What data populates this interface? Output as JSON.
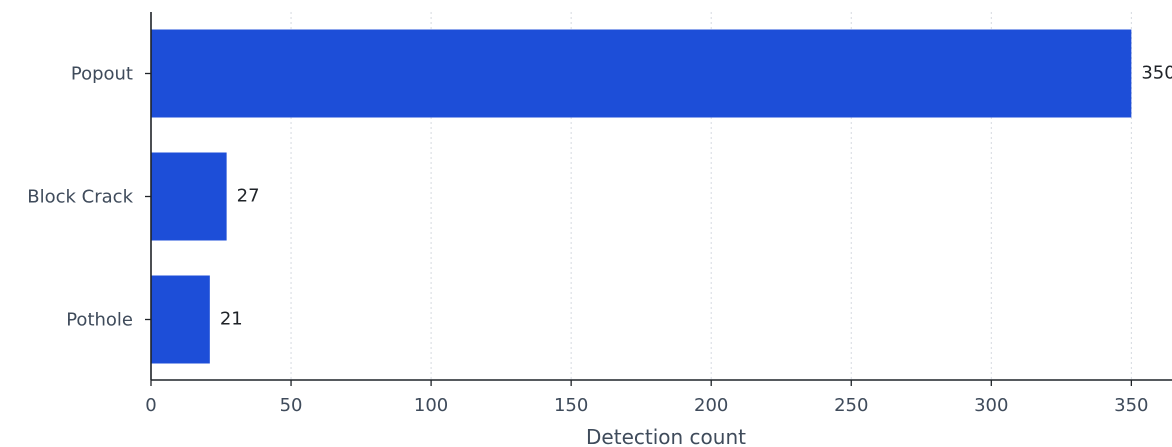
{
  "chart_data": {
    "type": "bar",
    "orientation": "horizontal",
    "categories": [
      "Popout",
      "Block Crack",
      "Pothole"
    ],
    "values": [
      350,
      27,
      21
    ],
    "value_labels": [
      "350",
      "27",
      "21"
    ],
    "title": "",
    "xlabel": "Detection count",
    "ylabel": "",
    "xlim": [
      0,
      370
    ],
    "xticks": [
      0,
      50,
      100,
      150,
      200,
      250,
      300,
      350
    ],
    "grid": "vertical dotted",
    "legend": "none",
    "bar_color": "#1d4ed8"
  }
}
